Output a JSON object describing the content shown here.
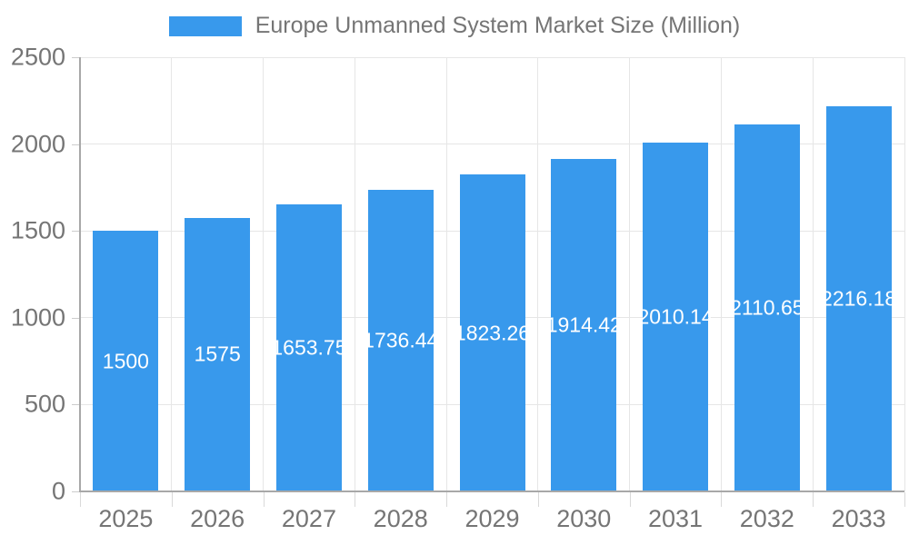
{
  "legend": {
    "label": "Europe Unmanned System Market Size (Million)"
  },
  "colors": {
    "bar": "#3899EC",
    "grid": "#e6e6e6",
    "axis": "#a8a8a8",
    "tick": "#d9d9d9",
    "axis_text": "#757575",
    "bar_label_text": "#ffffff",
    "background": "#ffffff"
  },
  "chart_data": {
    "type": "bar",
    "title": "Europe Unmanned System Market Size (Million)",
    "xlabel": "",
    "ylabel": "",
    "categories": [
      "2025",
      "2026",
      "2027",
      "2028",
      "2029",
      "2030",
      "2031",
      "2032",
      "2033"
    ],
    "series": [
      {
        "name": "Europe Unmanned System Market Size (Million)",
        "values": [
          1500,
          1575,
          1653.75,
          1736.44,
          1823.26,
          1914.42,
          2010.14,
          2110.65,
          2216.18
        ]
      }
    ],
    "value_labels": [
      "1500",
      "1575",
      "1653.75",
      "1736.44",
      "1823.26",
      "1914.42",
      "2010.14",
      "2110.65",
      "2216.18"
    ],
    "ylim": [
      0,
      2500
    ],
    "yticks": [
      0,
      500,
      1000,
      1500,
      2000,
      2500
    ],
    "grid": true,
    "legend_position": "top"
  }
}
